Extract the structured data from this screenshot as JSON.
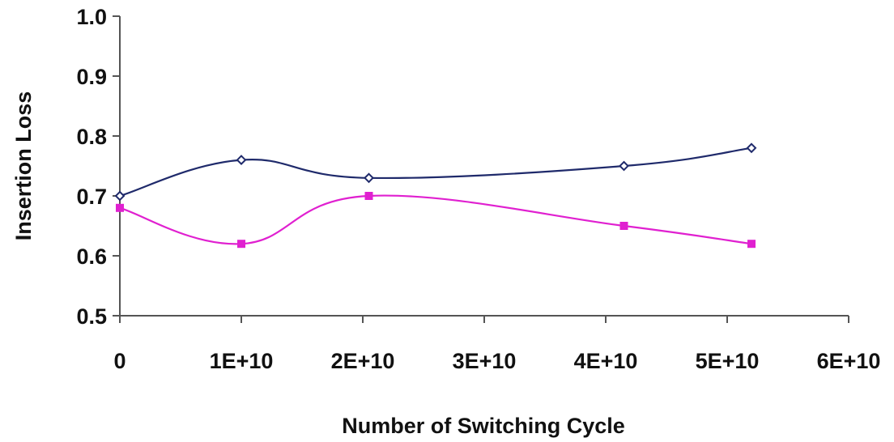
{
  "chart_data": {
    "type": "line",
    "title": "",
    "xlabel": "Number of Switching Cycle",
    "ylabel": "Insertion Loss",
    "xlim": [
      0,
      60000000000
    ],
    "ylim": [
      0.5,
      1.0
    ],
    "x_ticks": [
      {
        "value": 0,
        "label": "0"
      },
      {
        "value": 10000000000,
        "label": "1E+10"
      },
      {
        "value": 20000000000,
        "label": "2E+10"
      },
      {
        "value": 30000000000,
        "label": "3E+10"
      },
      {
        "value": 40000000000,
        "label": "4E+10"
      },
      {
        "value": 50000000000,
        "label": "5E+10"
      },
      {
        "value": 60000000000,
        "label": "6E+10"
      }
    ],
    "y_ticks": [
      {
        "value": 0.5,
        "label": "0.5"
      },
      {
        "value": 0.6,
        "label": "0.6"
      },
      {
        "value": 0.7,
        "label": "0.7"
      },
      {
        "value": 0.8,
        "label": "0.8"
      },
      {
        "value": 0.9,
        "label": "0.9"
      },
      {
        "value": 1.0,
        "label": "1.0"
      }
    ],
    "grid": false,
    "legend": "none",
    "series": [
      {
        "color": "#1f2a6b",
        "marker": "diamond",
        "points": [
          {
            "x": 0,
            "y": 0.7
          },
          {
            "x": 10000000000,
            "y": 0.76
          },
          {
            "x": 20500000000,
            "y": 0.73
          },
          {
            "x": 41500000000,
            "y": 0.75
          },
          {
            "x": 52000000000,
            "y": 0.78
          }
        ]
      },
      {
        "color": "#e020d0",
        "marker": "square",
        "points": [
          {
            "x": 0,
            "y": 0.68
          },
          {
            "x": 10000000000,
            "y": 0.62
          },
          {
            "x": 20500000000,
            "y": 0.7
          },
          {
            "x": 41500000000,
            "y": 0.65
          },
          {
            "x": 52000000000,
            "y": 0.62
          }
        ]
      }
    ]
  }
}
